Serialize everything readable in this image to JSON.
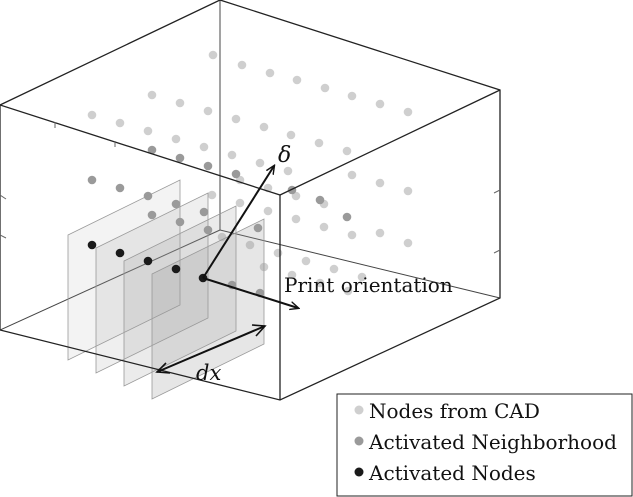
{
  "labels": {
    "delta": "δ",
    "print_orientation": "Print orientation",
    "dx": "dx"
  },
  "legend": {
    "items": [
      {
        "label": "Nodes from CAD",
        "color": "#cfcfcf"
      },
      {
        "label": "Activated Neighborhood",
        "color": "#9a9a9a"
      },
      {
        "label": "Activated Nodes",
        "color": "#1a1a1a"
      }
    ]
  },
  "colors": {
    "box_line": "#222222",
    "plane_fill": "#9c9c9c",
    "cad_node": "#cfcfcf",
    "neighbor_node": "#9a9a9a",
    "active_node": "#1a1a1a"
  }
}
